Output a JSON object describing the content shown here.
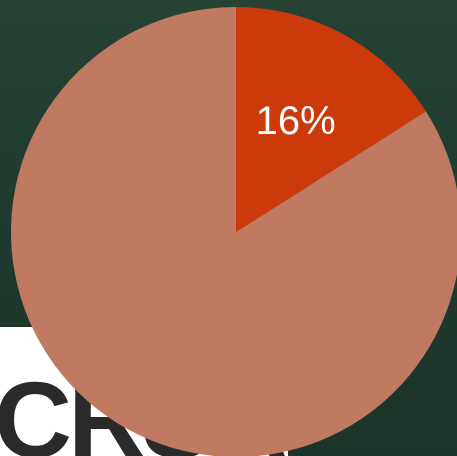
{
  "background": {
    "logo_text": "CRSA"
  },
  "chart_data": {
    "type": "pie",
    "start_angle_deg": 0,
    "direction": "clockwise",
    "slices": [
      {
        "value": 16,
        "label": "16%",
        "color": "#cc3a0c",
        "label_color": "#ffffff"
      },
      {
        "value": 84,
        "label": "",
        "color": "#c07a61",
        "label_color": "#ffffff"
      }
    ]
  }
}
